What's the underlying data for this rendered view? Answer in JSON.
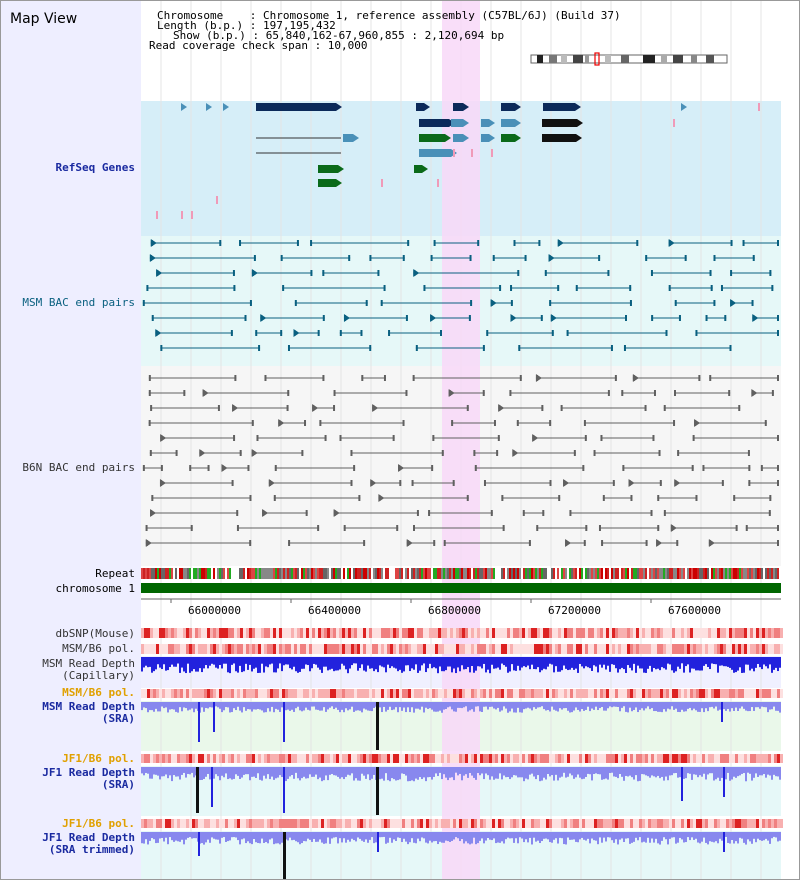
{
  "title": "Map View",
  "info": {
    "chromosome_line": "Chromosome    : Chromosome 1, reference assembly (C57BL/6J) (Build 37)",
    "length_line": "Length (b.p.) : 197,195,432",
    "show_line": "Show (b.p.) : 65,840,162-67,960,855 : 2,120,694 bp",
    "span_line": "Read coverage check span : 10,000"
  },
  "tracks": {
    "refseq": "RefSeq Genes",
    "msm_bac": "MSM BAC end pairs",
    "b6n_bac": "B6N BAC end pairs",
    "repeat": "Repeat",
    "chromosome": "chromosome 1",
    "dbsnp": "dbSNP(Mouse)",
    "msm_b6_pol": "MSM/B6 pol.",
    "msm_read_depth_cap": "MSM Read Depth\n(Capillary)",
    "msm_b6_pol2": "MSM/B6 pol.",
    "msm_read_depth_sra": "MSM Read Depth\n(SRA)",
    "jf1_b6_pol": "JF1/B6 pol.",
    "jf1_read_depth_sra": "JF1 Read Depth\n(SRA)",
    "jf1_b6_pol2": "JF1/B6 pol.",
    "jf1_read_depth_trim": "JF1 Read Depth\n(SRA trimmed)"
  },
  "axis": {
    "ticks": [
      "66000000",
      "66400000",
      "66800000",
      "67200000",
      "67600000"
    ]
  },
  "colors": {
    "refseq_bg": "#d6eef8",
    "bac_bg": "#e6f8f8",
    "highlight": "#f8d8f8",
    "gene_dark": "#0b2a5a",
    "gene_mid": "#4a90b8",
    "gene_green": "#0a6a1a",
    "msm_track": "#0a6080",
    "b6n_track": "#606060",
    "depth_blue": "#2222dd",
    "depth_light": "#8888ee",
    "label_blue": "#1a2aa0",
    "label_teal": "#0a6080",
    "label_orange": "#e0a000"
  }
}
